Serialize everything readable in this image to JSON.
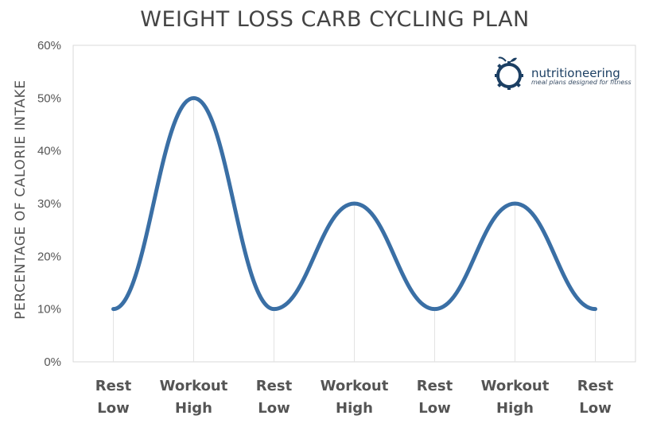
{
  "colors": {
    "series": "#3a6fa5",
    "grid": "#e3e3e3",
    "axis_text": "#555555",
    "title": "#444444",
    "brand": "#1c3f63"
  },
  "brand": {
    "name": "nutritioneering",
    "tagline": "meal plans designed for fitness",
    "icon": "apple-gear-logo-icon"
  },
  "chart_data": {
    "type": "line",
    "title": "WEIGHT LOSS CARB CYCLING PLAN",
    "xlabel": "",
    "ylabel": "PERCENTAGE OF CALORIE INTAKE",
    "categories": [
      [
        "Rest",
        "Low"
      ],
      [
        "Workout",
        "High"
      ],
      [
        "Rest",
        "Low"
      ],
      [
        "Workout",
        "High"
      ],
      [
        "Rest",
        "Low"
      ],
      [
        "Workout",
        "High"
      ],
      [
        "Rest",
        "Low"
      ]
    ],
    "series": [
      {
        "values": [
          10,
          50,
          10,
          30,
          10,
          30,
          10
        ]
      }
    ],
    "ylim": [
      0,
      60
    ],
    "yticks": [
      "0%",
      "10%",
      "20%",
      "30%",
      "40%",
      "50%",
      "60%"
    ],
    "smooth": true,
    "vertical_drop_lines": true,
    "legend": "none"
  }
}
